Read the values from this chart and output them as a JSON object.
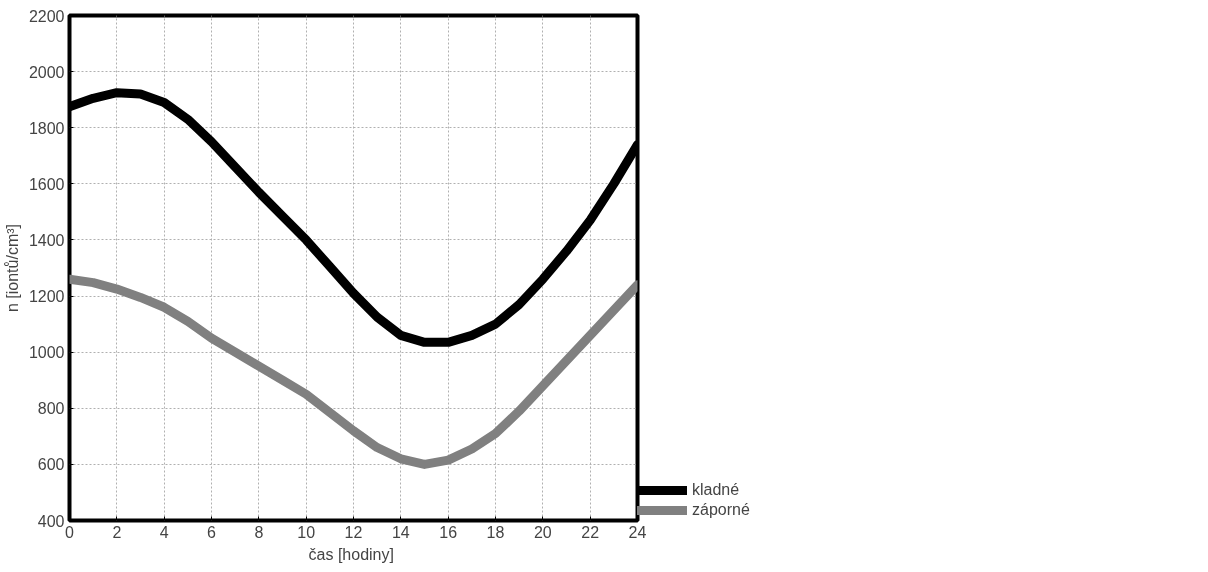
{
  "chart_data": {
    "type": "line",
    "xlabel": "čas  [hodiny]",
    "ylabel": "n [iontů/cm³]",
    "x": [
      0,
      1,
      2,
      3,
      4,
      5,
      6,
      7,
      8,
      9,
      10,
      11,
      12,
      13,
      14,
      15,
      16,
      17,
      18,
      19,
      20,
      21,
      22,
      23,
      24
    ],
    "series": [
      {
        "name": "kladné",
        "color": "#000000",
        "values": [
          1875,
          1905,
          1925,
          1920,
          1890,
          1830,
          1750,
          1660,
          1570,
          1485,
          1400,
          1305,
          1210,
          1125,
          1060,
          1035,
          1035,
          1060,
          1100,
          1170,
          1260,
          1360,
          1470,
          1600,
          1740
        ]
      },
      {
        "name": "záporné",
        "color": "#808080",
        "values": [
          1260,
          1248,
          1225,
          1195,
          1160,
          1110,
          1050,
          1000,
          950,
          900,
          850,
          785,
          720,
          660,
          620,
          600,
          615,
          655,
          710,
          790,
          880,
          970,
          1060,
          1150,
          1240
        ]
      }
    ],
    "xlim": [
      0,
      24
    ],
    "xticks": [
      0,
      2,
      4,
      6,
      8,
      10,
      12,
      14,
      16,
      18,
      20,
      22,
      24
    ],
    "ylim": [
      400,
      2200
    ],
    "yticks": [
      400,
      600,
      800,
      1000,
      1200,
      1400,
      1600,
      1800,
      2000,
      2200
    ],
    "grid": true,
    "legend": "bottom right",
    "marker": "none",
    "line_style": "solid"
  }
}
